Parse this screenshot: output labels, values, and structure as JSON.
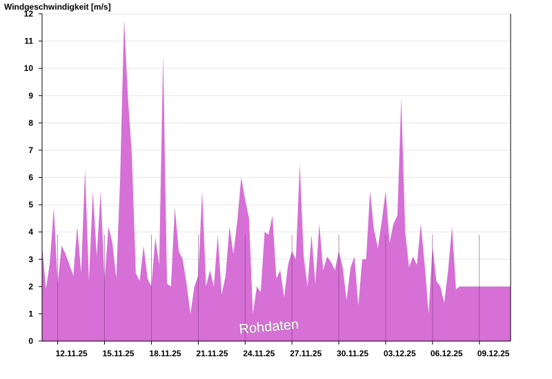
{
  "chart_data": {
    "type": "area",
    "title": "",
    "ylabel": "Windgeschwindigkeit [m/s]",
    "xlabel": "",
    "ylim": [
      0,
      12
    ],
    "yticks": [
      0,
      1,
      2,
      3,
      4,
      5,
      6,
      7,
      8,
      9,
      10,
      11,
      12
    ],
    "xlim": [
      "2025-11-11T00:00",
      "2025-12-11T00:00"
    ],
    "xticks": [
      {
        "date": "2025-11-12",
        "label": "12.11.25"
      },
      {
        "date": "2025-11-15",
        "label": "15.11.25"
      },
      {
        "date": "2025-11-18",
        "label": "18.11.25"
      },
      {
        "date": "2025-11-21",
        "label": "21.11.25"
      },
      {
        "date": "2025-11-24",
        "label": "24.11.25"
      },
      {
        "date": "2025-11-27",
        "label": "27.11.25"
      },
      {
        "date": "2025-11-30",
        "label": "30.11.25"
      },
      {
        "date": "2025-12-03",
        "label": "03.12.25"
      },
      {
        "date": "2025-12-06",
        "label": "06.12.25"
      },
      {
        "date": "2025-12-09",
        "label": "09.12.25"
      }
    ],
    "grid": true,
    "fill_color": "#d66fd6",
    "watermark": "Rohdaten",
    "series": [
      {
        "name": "",
        "x": [
          "2025-11-11T00:00",
          "2025-11-11T06:00",
          "2025-11-11T12:00",
          "2025-11-11T18:00",
          "2025-11-12T00:00",
          "2025-11-12T06:00",
          "2025-11-12T12:00",
          "2025-11-12T18:00",
          "2025-11-13T00:00",
          "2025-11-13T06:00",
          "2025-11-13T12:00",
          "2025-11-13T18:00",
          "2025-11-14T00:00",
          "2025-11-14T06:00",
          "2025-11-14T12:00",
          "2025-11-14T18:00",
          "2025-11-15T00:00",
          "2025-11-15T06:00",
          "2025-11-15T12:00",
          "2025-11-15T18:00",
          "2025-11-16T00:00",
          "2025-11-16T06:00",
          "2025-11-16T12:00",
          "2025-11-16T18:00",
          "2025-11-17T00:00",
          "2025-11-17T06:00",
          "2025-11-17T12:00",
          "2025-11-17T18:00",
          "2025-11-18T00:00",
          "2025-11-18T06:00",
          "2025-11-18T12:00",
          "2025-11-18T18:00",
          "2025-11-19T00:00",
          "2025-11-19T06:00",
          "2025-11-19T12:00",
          "2025-11-19T18:00",
          "2025-11-20T00:00",
          "2025-11-20T06:00",
          "2025-11-20T12:00",
          "2025-11-20T18:00",
          "2025-11-21T00:00",
          "2025-11-21T06:00",
          "2025-11-21T12:00",
          "2025-11-21T18:00",
          "2025-11-22T00:00",
          "2025-11-22T06:00",
          "2025-11-22T12:00",
          "2025-11-22T18:00",
          "2025-11-23T00:00",
          "2025-11-23T06:00",
          "2025-11-23T12:00",
          "2025-11-23T18:00",
          "2025-11-24T00:00",
          "2025-11-24T06:00",
          "2025-11-24T12:00",
          "2025-11-24T18:00",
          "2025-11-25T00:00",
          "2025-11-25T06:00",
          "2025-11-25T12:00",
          "2025-11-25T18:00",
          "2025-11-26T00:00",
          "2025-11-26T06:00",
          "2025-11-26T12:00",
          "2025-11-26T18:00",
          "2025-11-27T00:00",
          "2025-11-27T06:00",
          "2025-11-27T12:00",
          "2025-11-27T18:00",
          "2025-11-28T00:00",
          "2025-11-28T06:00",
          "2025-11-28T12:00",
          "2025-11-28T18:00",
          "2025-11-29T00:00",
          "2025-11-29T06:00",
          "2025-11-29T12:00",
          "2025-11-29T18:00",
          "2025-11-30T00:00",
          "2025-11-30T06:00",
          "2025-11-30T12:00",
          "2025-11-30T18:00",
          "2025-12-01T00:00",
          "2025-12-01T06:00",
          "2025-12-01T12:00",
          "2025-12-01T18:00",
          "2025-12-02T00:00",
          "2025-12-02T06:00",
          "2025-12-02T12:00",
          "2025-12-02T18:00",
          "2025-12-03T00:00",
          "2025-12-03T06:00",
          "2025-12-03T12:00",
          "2025-12-03T18:00",
          "2025-12-04T00:00",
          "2025-12-04T06:00",
          "2025-12-04T12:00",
          "2025-12-04T18:00",
          "2025-12-05T00:00",
          "2025-12-05T06:00",
          "2025-12-05T12:00",
          "2025-12-05T18:00",
          "2025-12-06T00:00",
          "2025-12-06T06:00",
          "2025-12-06T12:00",
          "2025-12-06T18:00",
          "2025-12-07T00:00",
          "2025-12-07T06:00",
          "2025-12-07T12:00",
          "2025-12-07T18:00",
          "2025-12-08T00:00",
          "2025-12-08T06:00",
          "2025-12-08T12:00",
          "2025-12-08T18:00",
          "2025-12-09T00:00",
          "2025-12-09T06:00",
          "2025-12-09T12:00",
          "2025-12-09T18:00",
          "2025-12-10T00:00",
          "2025-12-10T06:00",
          "2025-12-10T12:00",
          "2025-12-10T18:00",
          "2025-12-11T00:00"
        ],
        "y": [
          3.5,
          1.9,
          2.9,
          4.9,
          2.1,
          3.5,
          3.2,
          2.8,
          2.4,
          4.2,
          2.5,
          6.3,
          2.2,
          5.5,
          3.1,
          5.5,
          2.2,
          4.2,
          3.6,
          2.3,
          6.0,
          11.8,
          8.9,
          6.8,
          2.5,
          2.2,
          3.5,
          2.3,
          2.0,
          3.8,
          2.8,
          10.5,
          2.1,
          2.0,
          4.9,
          3.3,
          3.0,
          2.1,
          1.0,
          2.0,
          2.4,
          5.5,
          2.0,
          2.6,
          2.0,
          3.9,
          1.7,
          2.4,
          4.2,
          3.2,
          4.4,
          6.0,
          5.2,
          4.5,
          1.0,
          2.0,
          1.8,
          4.0,
          3.9,
          4.6,
          2.3,
          2.6,
          1.6,
          2.8,
          3.3,
          3.0,
          6.5,
          3.1,
          2.0,
          3.9,
          2.1,
          4.3,
          2.6,
          3.1,
          2.9,
          2.6,
          3.3,
          2.7,
          1.5,
          2.7,
          3.1,
          1.3,
          3.0,
          3.0,
          5.5,
          4.1,
          3.4,
          4.4,
          5.5,
          3.6,
          4.3,
          4.6,
          8.9,
          4.0,
          2.7,
          3.1,
          2.8,
          4.3,
          2.8,
          1.0,
          3.5,
          2.2,
          2.0,
          1.4,
          2.6,
          4.2,
          1.9,
          2.0,
          2.0,
          2.0,
          2.0,
          2.0,
          2.0,
          2.0,
          2.0,
          2.0,
          2.0,
          2.0,
          2.0,
          2.0,
          2.0
        ]
      }
    ]
  }
}
